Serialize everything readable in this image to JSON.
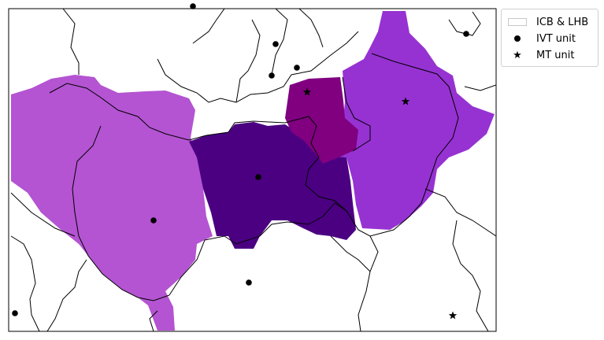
{
  "legend": {
    "boundary_label": "ICB & LHB",
    "ivt_label": "IVT unit",
    "mt_label": "MT unit"
  },
  "region_colors": {
    "light": "#b454d2",
    "medium": "#9632d2",
    "dark": "#4b0082",
    "crimson": "#800080"
  },
  "marker_symbols": {
    "ivt": "circle",
    "mt": "star"
  }
}
